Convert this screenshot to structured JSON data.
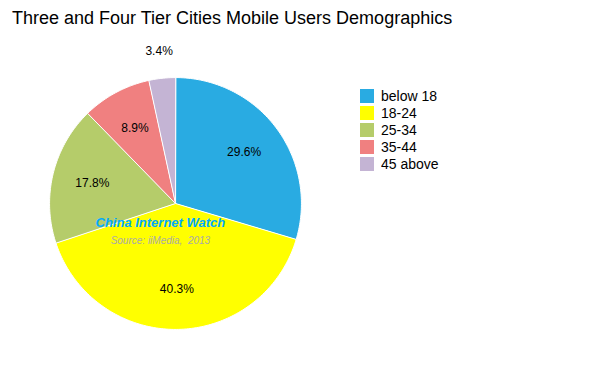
{
  "chart_data": {
    "type": "pie",
    "title": "Three and Four Tier Cities Mobile Users Demographics",
    "categories": [
      "below 18",
      "18-24",
      "25-34",
      "35-44",
      "45 above"
    ],
    "values": [
      29.6,
      40.3,
      17.8,
      8.9,
      3.4
    ],
    "value_labels": [
      "29.6%",
      "40.3%",
      "17.8%",
      "8.9%",
      "3.4%"
    ],
    "colors": [
      "#29abe2",
      "#ffff00",
      "#b5cc6a",
      "#f08080",
      "#c4b4d4"
    ],
    "data_labels": true,
    "legend": "right",
    "annotations": [
      {
        "text": "China Internet Watch",
        "color": "#00aaff"
      },
      {
        "text": "Source: iiMedia,  2013",
        "color": "#aaaaaa"
      }
    ]
  }
}
